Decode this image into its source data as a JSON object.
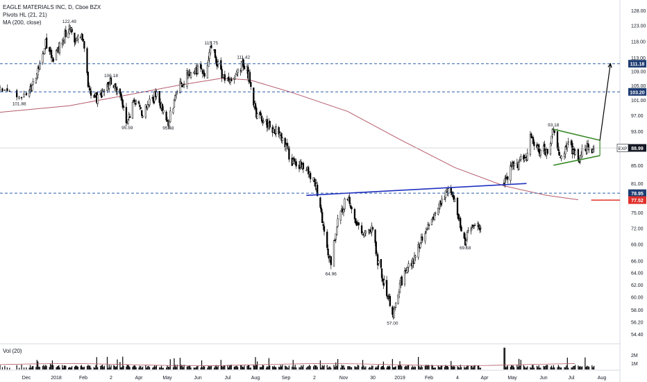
{
  "legend": {
    "title": "EAGLE MATERIALS INC, D, Cboe BZX",
    "pivots": "Pivots HL (21, 21)",
    "ma": "MA (200, close)"
  },
  "volume": {
    "label": "Vol (20)",
    "ticks": [
      "2M",
      "1M"
    ]
  },
  "colors": {
    "candle": "#000000",
    "ma": "#b45a6a",
    "dashed": "#2a5ca8",
    "neckline": "#1f2fbf",
    "triangle": "#3a8a2a",
    "arrow": "#000000",
    "red_level": "#e0302a",
    "axis_text": "#131722"
  },
  "chart_data": {
    "type": "candlestick",
    "title": "EAGLE MATERIALS INC, D, Cboe BZX",
    "y_axis_ticks": [
      128.0,
      123.0,
      118.0,
      113.0,
      109.0,
      105.0,
      101.0,
      97.0,
      93.0,
      89.0,
      85.0,
      81.0,
      78.0,
      75.0,
      72.0,
      69.0,
      66.0,
      64.0,
      62.0,
      60.0,
      58.0,
      56.2,
      54.4
    ],
    "y_axis_tick_labels": [
      "128.00",
      "123.00",
      "118.00",
      "113.00",
      "109.00",
      "105.00",
      "101.00",
      "97.00",
      "93.00",
      "89.00",
      "85.00",
      "81.00",
      "78.00",
      "75.00",
      "72.00",
      "69.00",
      "66.00",
      "64.00",
      "62.00",
      "60.00",
      "58.00",
      "56.20",
      "54.40"
    ],
    "x_axis_labels": [
      "Dec",
      "2018",
      "Feb",
      "2",
      "Apr",
      "May",
      "Jun",
      "Jul",
      "Aug",
      "Sep",
      "2",
      "Nov",
      "30",
      "2019",
      "Feb",
      "4",
      "Apr",
      "May",
      "Jun",
      "Jul",
      "Aug"
    ],
    "price_path": [
      {
        "date": "2017-11-20",
        "close": 103.5
      },
      {
        "date": "2017-11-28",
        "close": 101.88
      },
      {
        "date": "2017-12-06",
        "close": 104.5
      },
      {
        "date": "2017-12-14",
        "close": 110.0
      },
      {
        "date": "2017-12-21",
        "close": 118.0
      },
      {
        "date": "2017-12-28",
        "close": 112.0
      },
      {
        "date": "2018-01-06",
        "close": 117.0
      },
      {
        "date": "2018-01-16",
        "close": 122.49
      },
      {
        "date": "2018-01-24",
        "close": 118.0
      },
      {
        "date": "2018-01-30",
        "close": 121.0
      },
      {
        "date": "2018-02-07",
        "close": 104.0
      },
      {
        "date": "2018-02-16",
        "close": 101.0
      },
      {
        "date": "2018-03-02",
        "close": 106.18
      },
      {
        "date": "2018-03-12",
        "close": 102.0
      },
      {
        "date": "2018-03-20",
        "close": 95.59
      },
      {
        "date": "2018-03-27",
        "close": 100.0
      },
      {
        "date": "2018-04-06",
        "close": 98.0
      },
      {
        "date": "2018-04-20",
        "close": 102.5
      },
      {
        "date": "2018-05-02",
        "close": 95.48
      },
      {
        "date": "2018-05-12",
        "close": 104.0
      },
      {
        "date": "2018-05-26",
        "close": 110.0
      },
      {
        "date": "2018-06-08",
        "close": 109.0
      },
      {
        "date": "2018-06-15",
        "close": 115.75
      },
      {
        "date": "2018-06-26",
        "close": 108.0
      },
      {
        "date": "2018-07-05",
        "close": 106.0
      },
      {
        "date": "2018-07-19",
        "close": 111.42
      },
      {
        "date": "2018-07-26",
        "close": 107.0
      },
      {
        "date": "2018-08-01",
        "close": 98.0
      },
      {
        "date": "2018-08-13",
        "close": 95.0
      },
      {
        "date": "2018-08-27",
        "close": 93.0
      },
      {
        "date": "2018-09-10",
        "close": 86.0
      },
      {
        "date": "2018-09-24",
        "close": 84.0
      },
      {
        "date": "2018-10-04",
        "close": 80.0
      },
      {
        "date": "2018-10-12",
        "close": 72.0
      },
      {
        "date": "2018-10-19",
        "close": 64.96
      },
      {
        "date": "2018-10-26",
        "close": 74.0
      },
      {
        "date": "2018-11-05",
        "close": 78.0
      },
      {
        "date": "2018-11-12",
        "close": 74.0
      },
      {
        "date": "2018-11-21",
        "close": 70.0
      },
      {
        "date": "2018-11-29",
        "close": 72.0
      },
      {
        "date": "2018-12-06",
        "close": 66.0
      },
      {
        "date": "2018-12-14",
        "close": 62.0
      },
      {
        "date": "2018-12-21",
        "close": 59.0
      },
      {
        "date": "2018-12-24",
        "close": 57.0
      },
      {
        "date": "2019-01-02",
        "close": 62.0
      },
      {
        "date": "2019-01-10",
        "close": 64.5
      },
      {
        "date": "2019-01-18",
        "close": 67.0
      },
      {
        "date": "2019-01-28",
        "close": 71.0
      },
      {
        "date": "2019-02-05",
        "close": 74.0
      },
      {
        "date": "2019-02-15",
        "close": 77.0
      },
      {
        "date": "2019-02-22",
        "close": 79.5
      },
      {
        "date": "2019-03-01",
        "close": 78.0
      },
      {
        "date": "2019-03-07",
        "close": 72.0
      },
      {
        "date": "2019-03-12",
        "close": 69.58
      },
      {
        "date": "2019-03-20",
        "close": 72.5
      },
      {
        "date": "2019-03-28",
        "close": 72.0
      }
    ],
    "price_path_2": [
      {
        "date": "2019-04-22",
        "close": 81.0
      },
      {
        "date": "2019-04-30",
        "close": 84.5
      },
      {
        "date": "2019-05-10",
        "close": 86.0
      },
      {
        "date": "2019-05-16",
        "close": 87.0
      },
      {
        "date": "2019-05-20",
        "close": 91.0
      },
      {
        "date": "2019-05-28",
        "close": 89.0
      },
      {
        "date": "2019-06-06",
        "close": 88.0
      },
      {
        "date": "2019-06-13",
        "close": 93.18
      },
      {
        "date": "2019-06-20",
        "close": 87.0
      },
      {
        "date": "2019-06-28",
        "close": 90.0
      },
      {
        "date": "2019-07-08",
        "close": 86.5
      },
      {
        "date": "2019-07-16",
        "close": 89.0
      },
      {
        "date": "2019-07-24",
        "close": 88.99
      }
    ],
    "ma_200": [
      {
        "date": "2017-11-20",
        "value": 97.8
      },
      {
        "date": "2018-01-16",
        "value": 99.5
      },
      {
        "date": "2018-03-12",
        "value": 102.0
      },
      {
        "date": "2018-05-12",
        "value": 105.0
      },
      {
        "date": "2018-06-26",
        "value": 107.0
      },
      {
        "date": "2018-07-26",
        "value": 106.5
      },
      {
        "date": "2018-09-10",
        "value": 103.0
      },
      {
        "date": "2018-11-05",
        "value": 98.0
      },
      {
        "date": "2019-01-02",
        "value": 91.0
      },
      {
        "date": "2019-03-01",
        "value": 84.5
      },
      {
        "date": "2019-04-22",
        "value": 80.5
      },
      {
        "date": "2019-06-06",
        "value": 78.5
      },
      {
        "date": "2019-07-08",
        "value": 77.6
      }
    ],
    "pivot_labels": [
      {
        "text": "101.88",
        "date": "2017-11-28",
        "price": 101.88,
        "pos": "below"
      },
      {
        "text": "122.49",
        "date": "2018-01-16",
        "price": 122.49,
        "pos": "above"
      },
      {
        "text": "106.18",
        "date": "2018-03-02",
        "price": 106.18,
        "pos": "above"
      },
      {
        "text": "95.59",
        "date": "2018-03-20",
        "price": 95.59,
        "pos": "below"
      },
      {
        "text": "95.48",
        "date": "2018-05-02",
        "price": 95.48,
        "pos": "below"
      },
      {
        "text": "115.75",
        "date": "2018-06-15",
        "price": 115.75,
        "pos": "above"
      },
      {
        "text": "111.42",
        "date": "2018-07-19",
        "price": 111.42,
        "pos": "above"
      },
      {
        "text": "64.96",
        "date": "2018-10-19",
        "price": 64.96,
        "pos": "below"
      },
      {
        "text": "57.00",
        "date": "2018-12-24",
        "price": 57.0,
        "pos": "below"
      },
      {
        "text": "69.58",
        "date": "2019-03-12",
        "price": 69.58,
        "pos": "below"
      },
      {
        "text": "93.18",
        "date": "2019-06-13",
        "price": 93.18,
        "pos": "above"
      }
    ],
    "dashed_levels": [
      {
        "price": 111.18,
        "label": "111.18"
      },
      {
        "price": 103.2,
        "label": "103.20"
      },
      {
        "price": 78.95,
        "label": "78.95"
      }
    ],
    "current_price": {
      "symbol": "EXP",
      "price": 88.99,
      "label": "88.99"
    },
    "red_level": {
      "price": 77.52,
      "label": "77.52",
      "start_date": "2019-07-24"
    },
    "neckline": [
      {
        "date": "2018-09-24",
        "price": 78.5
      },
      {
        "date": "2019-05-16",
        "price": 81.0
      }
    ],
    "triangle": {
      "upper": [
        {
          "date": "2019-06-13",
          "price": 93.5
        },
        {
          "date": "2019-07-30",
          "price": 90.8
        }
      ],
      "lower": [
        {
          "date": "2019-06-13",
          "price": 85.0
        },
        {
          "date": "2019-07-30",
          "price": 87.2
        }
      ]
    },
    "target_arrow": [
      {
        "date": "2019-07-30",
        "price": 90.8
      },
      {
        "date": "2019-08-10",
        "price": 111.18
      }
    ]
  }
}
